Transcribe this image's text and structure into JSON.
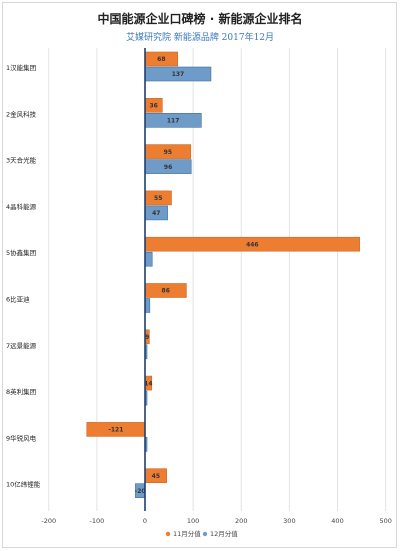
{
  "chart_data": {
    "type": "bar",
    "orientation": "horizontal",
    "title": "中国能源企业口碑榜 · 新能源企业排名",
    "subtitle": "艾媒研究院 新能源品牌 2017年12月",
    "categories": [
      "1汉能集团",
      "2金风科技",
      "3天合光能",
      "4晶科能源",
      "5协鑫集团",
      "6比亚迪",
      "7远景能源",
      "8英利集团",
      "9华锐风电",
      "10亿纬锂能"
    ],
    "series": [
      {
        "name": "11月分值",
        "color": "#ed7d31",
        "values": [
          68,
          36,
          95,
          55,
          446,
          86,
          9,
          14,
          -121,
          45
        ]
      },
      {
        "name": "12月分值",
        "color": "#6e9bc8",
        "values": [
          137,
          117,
          96,
          47,
          15,
          10,
          0,
          0,
          0,
          -20
        ]
      }
    ],
    "data_labels": [
      [
        "68",
        "36",
        "95",
        "55",
        "446",
        "86",
        "9",
        "14",
        "-121",
        "45"
      ],
      [
        "137",
        "117",
        "96",
        "47",
        "",
        "",
        "",
        "",
        "",
        "-20"
      ]
    ],
    "xlim": [
      -200,
      500
    ],
    "xticks": [
      "-200",
      "-100",
      "0",
      "100",
      "200",
      "300",
      "400",
      "500"
    ],
    "grid": true,
    "legend": "bottom"
  }
}
